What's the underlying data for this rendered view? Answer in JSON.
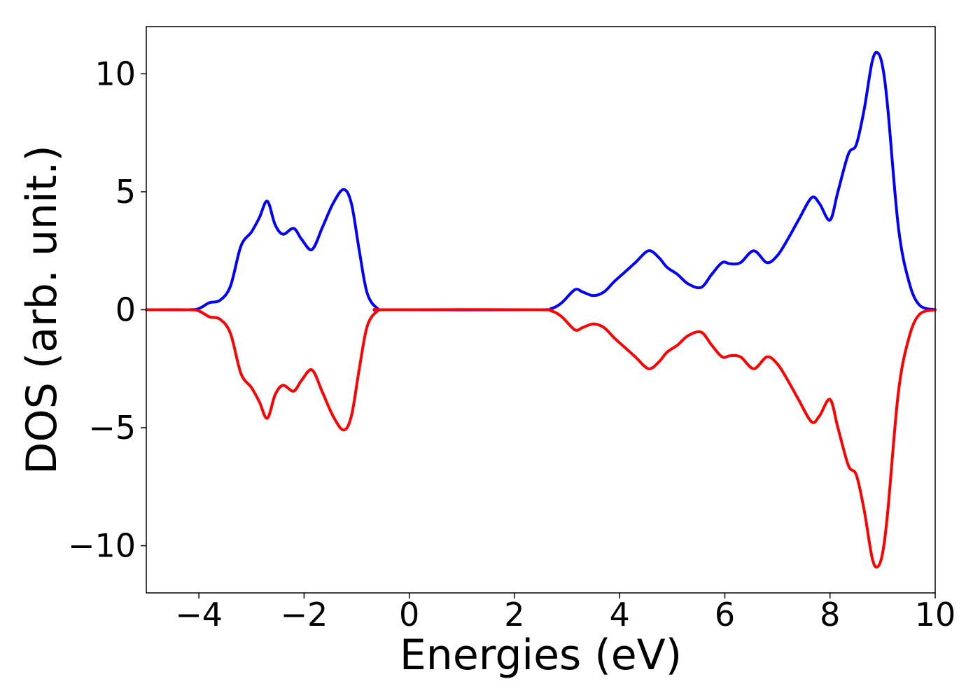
{
  "chart_data": {
    "type": "line",
    "title": "",
    "xlabel": "Energies (eV)",
    "ylabel": "DOS (arb. unit.)",
    "xlim": [
      -5,
      10
    ],
    "ylim": [
      -12,
      12
    ],
    "xticks": [
      -4,
      -2,
      0,
      2,
      4,
      6,
      8,
      10
    ],
    "xtick_labels": [
      "−4",
      "−2",
      "0",
      "2",
      "4",
      "6",
      "8",
      "10"
    ],
    "yticks": [
      -10,
      -5,
      0,
      5,
      10
    ],
    "ytick_labels": [
      "−10",
      "−5",
      "0",
      "5",
      "10"
    ],
    "grid": false,
    "legend": "none",
    "series": [
      {
        "color": "#0000ff",
        "x": [
          -5.0,
          -4.2,
          -4.0,
          -3.8,
          -3.6,
          -3.4,
          -3.2,
          -3.0,
          -2.85,
          -2.7,
          -2.55,
          -2.4,
          -2.2,
          -2.05,
          -1.85,
          -1.65,
          -1.45,
          -1.25,
          -1.1,
          -0.95,
          -0.8,
          -0.6,
          -0.4,
          2.4,
          2.7,
          2.9,
          3.15,
          3.3,
          3.5,
          3.7,
          3.9,
          4.1,
          4.3,
          4.55,
          4.75,
          4.9,
          5.1,
          5.3,
          5.55,
          5.75,
          5.95,
          6.1,
          6.3,
          6.55,
          6.8,
          7.0,
          7.2,
          7.4,
          7.65,
          7.8,
          8.0,
          8.15,
          8.35,
          8.5,
          8.65,
          8.8,
          8.9,
          9.0,
          9.1,
          9.3,
          9.5,
          9.7,
          10.0
        ],
        "y": [
          0.0,
          0.0,
          0.05,
          0.3,
          0.4,
          1.0,
          2.7,
          3.3,
          3.9,
          4.6,
          3.6,
          3.2,
          3.45,
          3.0,
          2.55,
          3.5,
          4.5,
          5.1,
          4.5,
          2.5,
          0.7,
          0.05,
          0.0,
          0.0,
          0.05,
          0.3,
          0.85,
          0.75,
          0.6,
          0.75,
          1.2,
          1.6,
          2.0,
          2.5,
          2.2,
          1.8,
          1.5,
          1.1,
          0.95,
          1.5,
          2.0,
          1.95,
          2.0,
          2.5,
          2.0,
          2.3,
          3.0,
          3.8,
          4.75,
          4.5,
          3.8,
          5.0,
          6.6,
          7.0,
          8.5,
          10.5,
          10.9,
          10.3,
          8.5,
          3.5,
          1.2,
          0.2,
          0.0
        ]
      },
      {
        "color": "#ff0000",
        "x": [
          -5.0,
          -4.2,
          -4.0,
          -3.8,
          -3.6,
          -3.4,
          -3.2,
          -3.0,
          -2.85,
          -2.7,
          -2.55,
          -2.4,
          -2.2,
          -2.05,
          -1.85,
          -1.65,
          -1.45,
          -1.25,
          -1.1,
          -0.95,
          -0.8,
          -0.6,
          -0.4,
          2.4,
          2.7,
          2.9,
          3.15,
          3.3,
          3.5,
          3.7,
          3.9,
          4.1,
          4.3,
          4.55,
          4.75,
          4.9,
          5.1,
          5.3,
          5.55,
          5.75,
          5.95,
          6.1,
          6.3,
          6.55,
          6.8,
          7.0,
          7.2,
          7.4,
          7.65,
          7.8,
          8.0,
          8.15,
          8.35,
          8.5,
          8.65,
          8.8,
          8.9,
          9.0,
          9.1,
          9.3,
          9.5,
          9.7,
          10.0
        ],
        "y": [
          0.0,
          0.0,
          -0.05,
          -0.3,
          -0.4,
          -1.0,
          -2.7,
          -3.3,
          -3.9,
          -4.6,
          -3.6,
          -3.2,
          -3.45,
          -3.0,
          -2.55,
          -3.5,
          -4.5,
          -5.1,
          -4.5,
          -2.5,
          -0.7,
          -0.05,
          0.0,
          0.0,
          -0.05,
          -0.3,
          -0.85,
          -0.75,
          -0.6,
          -0.75,
          -1.2,
          -1.6,
          -2.0,
          -2.5,
          -2.2,
          -1.8,
          -1.5,
          -1.1,
          -0.95,
          -1.5,
          -2.0,
          -1.95,
          -2.0,
          -2.5,
          -2.0,
          -2.3,
          -3.0,
          -3.8,
          -4.75,
          -4.5,
          -3.8,
          -5.0,
          -6.6,
          -7.0,
          -8.5,
          -10.5,
          -10.9,
          -10.3,
          -8.5,
          -3.5,
          -1.2,
          -0.2,
          0.0
        ]
      }
    ]
  }
}
